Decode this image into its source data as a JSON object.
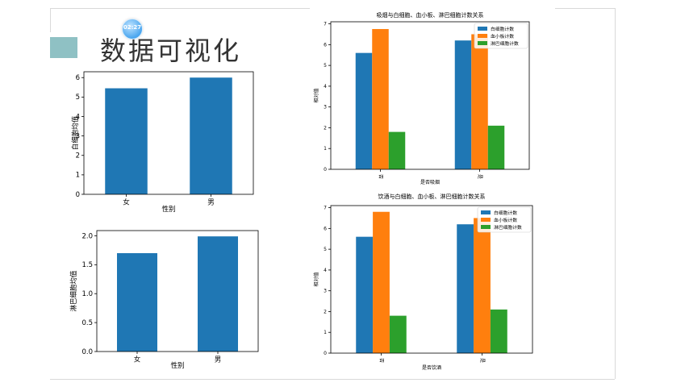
{
  "page": {
    "title": "数据可视化",
    "badge_text": "02:27"
  },
  "colors": {
    "blue": "#1f77b4",
    "orange": "#ff7f0e",
    "green": "#2ca02c",
    "accent_block": "#8fc1c4"
  },
  "chart_data": [
    {
      "type": "bar",
      "title": "",
      "xlabel": "性别",
      "ylabel": "白细胞均值",
      "categories": [
        "女",
        "男"
      ],
      "series": [
        {
          "values": [
            5.45,
            6.0
          ]
        }
      ],
      "ylim": [
        0,
        6.3
      ],
      "yticks": [
        "0",
        "1",
        "2",
        "3",
        "4",
        "5",
        "6"
      ],
      "ytick_values": [
        0,
        1,
        2,
        3,
        4,
        5,
        6
      ],
      "legend": "none",
      "grid": false
    },
    {
      "type": "bar",
      "title": "",
      "xlabel": "性别",
      "ylabel": "淋巴细胞均值",
      "categories": [
        "女",
        "男"
      ],
      "series": [
        {
          "values": [
            1.7,
            1.99
          ]
        }
      ],
      "ylim": [
        0,
        2.09
      ],
      "yticks": [
        "0.0",
        "0.5",
        "1.0",
        "1.5",
        "2.0"
      ],
      "ytick_values": [
        0,
        0.5,
        1.0,
        1.5,
        2.0
      ],
      "legend": "none",
      "grid": false
    },
    {
      "type": "bar",
      "title": "吸烟与白细胞、血小板、淋巴细胞计数关系",
      "xlabel": "是否吸烟",
      "ylabel": "相对值",
      "categories": [
        "否",
        "是"
      ],
      "series": [
        {
          "name": "白细胞计数",
          "values": [
            5.6,
            6.2
          ]
        },
        {
          "name": "血小板计数",
          "values": [
            6.75,
            6.5
          ]
        },
        {
          "name": "淋巴细胞计数",
          "values": [
            1.8,
            2.1
          ]
        }
      ],
      "ylim": [
        0,
        7.1
      ],
      "yticks": [
        "0",
        "1",
        "2",
        "3",
        "4",
        "5",
        "6",
        "7"
      ],
      "ytick_values": [
        0,
        1,
        2,
        3,
        4,
        5,
        6,
        7
      ],
      "legend": "top-right",
      "grid": false
    },
    {
      "type": "bar",
      "title": "饮酒与白细胞、血小板、淋巴细胞计数关系",
      "xlabel": "是否饮酒",
      "ylabel": "相对值",
      "categories": [
        "否",
        "是"
      ],
      "series": [
        {
          "name": "白细胞计数",
          "values": [
            5.6,
            6.2
          ]
        },
        {
          "name": "血小板计数",
          "values": [
            6.8,
            6.5
          ]
        },
        {
          "name": "淋巴细胞计数",
          "values": [
            1.8,
            2.1
          ]
        }
      ],
      "ylim": [
        0,
        7.1
      ],
      "yticks": [
        "0",
        "1",
        "2",
        "3",
        "4",
        "5",
        "6",
        "7"
      ],
      "ytick_values": [
        0,
        1,
        2,
        3,
        4,
        5,
        6,
        7
      ],
      "legend": "top-right",
      "grid": false
    }
  ]
}
